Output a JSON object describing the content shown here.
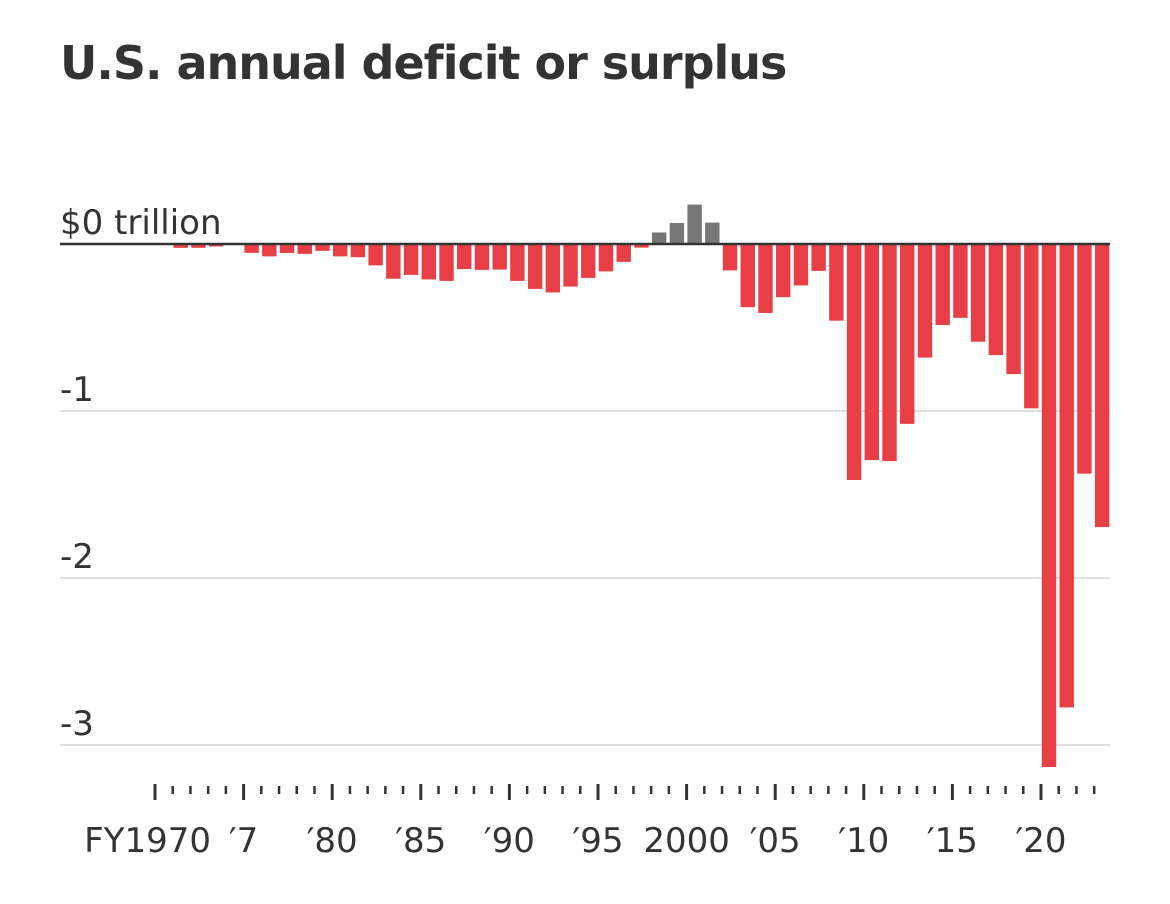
{
  "chart_data": {
    "type": "bar",
    "title": "U.S. annual deficit or surplus",
    "ylabel_top": "$0 trillion",
    "ylim": [
      -3.13,
      0.25
    ],
    "yticks": [
      {
        "value": 0,
        "label": "$0 trillion"
      },
      {
        "value": -1,
        "label": "-1"
      },
      {
        "value": -2,
        "label": "-2"
      },
      {
        "value": -3,
        "label": "-3"
      }
    ],
    "xticks": [
      {
        "year": 1970,
        "label": "FY1970"
      },
      {
        "year": 1975,
        "label": "′7"
      },
      {
        "year": 1980,
        "label": "′80"
      },
      {
        "year": 1985,
        "label": "′85"
      },
      {
        "year": 1990,
        "label": "′90"
      },
      {
        "year": 1995,
        "label": "′95"
      },
      {
        "year": 2000,
        "label": "2000"
      },
      {
        "year": 2005,
        "label": "′05"
      },
      {
        "year": 2010,
        "label": "′10"
      },
      {
        "year": 2015,
        "label": "′15"
      },
      {
        "year": 2020,
        "label": "′20"
      }
    ],
    "x": [
      1970,
      1971,
      1972,
      1973,
      1974,
      1975,
      1976,
      1977,
      1978,
      1979,
      1980,
      1981,
      1982,
      1983,
      1984,
      1985,
      1986,
      1987,
      1988,
      1989,
      1990,
      1991,
      1992,
      1993,
      1994,
      1995,
      1996,
      1997,
      1998,
      1999,
      2000,
      2001,
      2002,
      2003,
      2004,
      2005,
      2006,
      2007,
      2008,
      2009,
      2010,
      2011,
      2012,
      2013,
      2014,
      2015,
      2016,
      2017,
      2018,
      2019,
      2020,
      2021,
      2022,
      2023
    ],
    "values": [
      -0.003,
      -0.023,
      -0.023,
      -0.015,
      -0.006,
      -0.053,
      -0.074,
      -0.054,
      -0.059,
      -0.041,
      -0.074,
      -0.079,
      -0.128,
      -0.208,
      -0.185,
      -0.212,
      -0.221,
      -0.15,
      -0.155,
      -0.153,
      -0.221,
      -0.269,
      -0.29,
      -0.255,
      -0.203,
      -0.164,
      -0.107,
      -0.022,
      0.069,
      0.126,
      0.236,
      0.128,
      -0.158,
      -0.378,
      -0.413,
      -0.318,
      -0.248,
      -0.161,
      -0.459,
      -1.413,
      -1.294,
      -1.3,
      -1.077,
      -0.68,
      -0.485,
      -0.442,
      -0.585,
      -0.665,
      -0.779,
      -0.984,
      -3.132,
      -2.775,
      -1.375,
      -1.695
    ],
    "colors": {
      "deficit": "#e83e45",
      "surplus": "#777777",
      "zero_line": "#333333",
      "grid": "#e0e0e0"
    }
  }
}
